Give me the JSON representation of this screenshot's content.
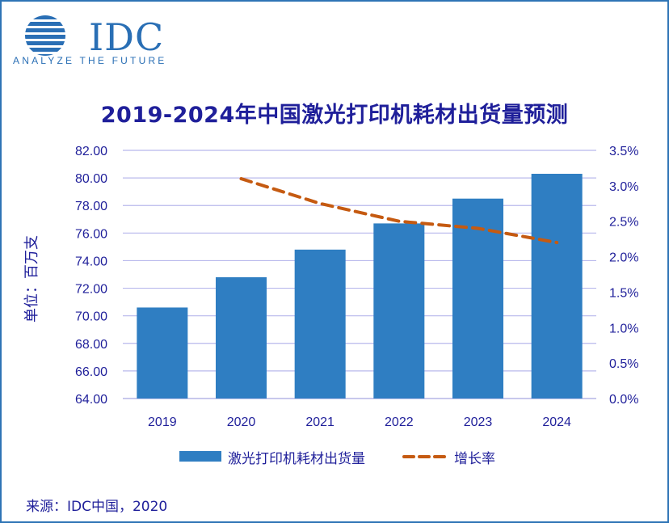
{
  "logo": {
    "brand": "IDC",
    "tagline": "ANALYZE THE FUTURE"
  },
  "chart_data": {
    "type": "bar",
    "title": "2019-2024年中国激光打印机耗材出货量预测",
    "ylabel": "单位：百万支",
    "categories": [
      "2019",
      "2020",
      "2021",
      "2022",
      "2023",
      "2024"
    ],
    "series": [
      {
        "name": "激光打印机耗材出货量",
        "kind": "bar",
        "axis": "left",
        "color": "#2f7ec2",
        "values": [
          70.6,
          72.8,
          74.8,
          76.7,
          78.5,
          80.3
        ]
      },
      {
        "name": "增长率",
        "kind": "line-dashed",
        "axis": "right",
        "color": "#c55a11",
        "values": [
          null,
          3.1,
          2.75,
          2.5,
          2.4,
          2.2
        ]
      }
    ],
    "y_left": {
      "min": 64,
      "max": 82,
      "ticks": [
        "64.00",
        "66.00",
        "68.00",
        "70.00",
        "72.00",
        "74.00",
        "76.00",
        "78.00",
        "80.00",
        "82.00"
      ]
    },
    "y_right": {
      "min": 0,
      "max": 3.5,
      "unit": "%",
      "ticks": [
        "0.0%",
        "0.5%",
        "1.0%",
        "1.5%",
        "2.0%",
        "2.5%",
        "3.0%",
        "3.5%"
      ]
    },
    "grid": true,
    "legend": "bottom-center"
  },
  "source": "来源：IDC中国，2020"
}
